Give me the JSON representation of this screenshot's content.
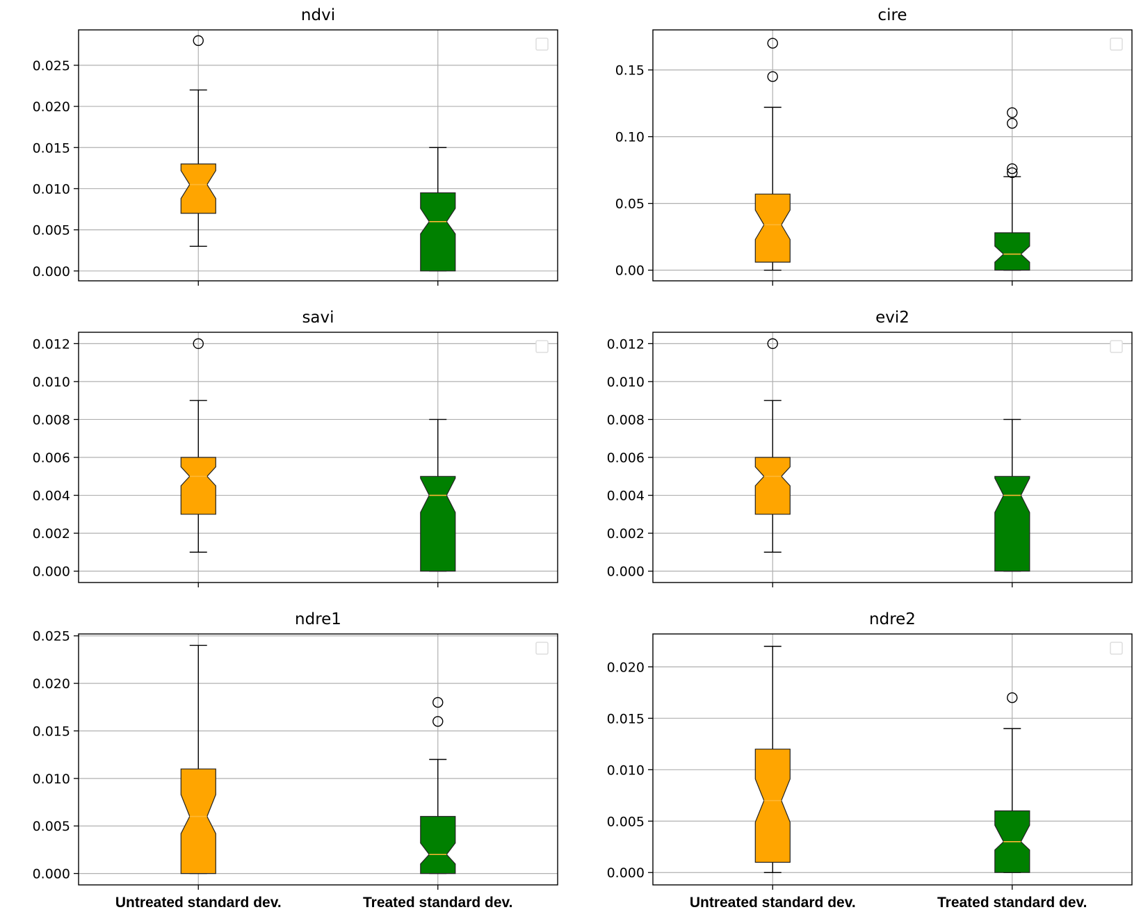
{
  "chart_data": [
    {
      "type": "box",
      "title": "ndvi",
      "categories": [
        "Untreated standard dev.",
        "Treated standard dev."
      ],
      "show_xticklabels": false,
      "ylim": [
        -0.0012,
        0.0293
      ],
      "yticks": [
        0.0,
        0.005,
        0.01,
        0.015,
        0.02,
        0.025
      ],
      "ytick_labels": [
        "0.000",
        "0.005",
        "0.010",
        "0.015",
        "0.020",
        "0.025"
      ],
      "grid": true,
      "notched": true,
      "boxes": [
        {
          "category": "Untreated standard dev.",
          "whisker_low": 0.003,
          "q1": 0.007,
          "median": 0.0105,
          "q3": 0.013,
          "whisker_high": 0.022,
          "notch_low": 0.0088,
          "notch_high": 0.0122,
          "outliers": [
            0.028
          ]
        },
        {
          "category": "Treated standard dev.",
          "whisker_low": 0.0,
          "q1": 0.0,
          "median": 0.006,
          "q3": 0.0095,
          "whisker_high": 0.015,
          "notch_low": 0.0045,
          "notch_high": 0.0076,
          "outliers": []
        }
      ]
    },
    {
      "type": "box",
      "title": "cire",
      "categories": [
        "Untreated standard dev.",
        "Treated standard dev."
      ],
      "show_xticklabels": false,
      "ylim": [
        -0.008,
        0.18
      ],
      "yticks": [
        0.0,
        0.05,
        0.1,
        0.15
      ],
      "ytick_labels": [
        "0.00",
        "0.05",
        "0.10",
        "0.15"
      ],
      "grid": true,
      "notched": true,
      "boxes": [
        {
          "category": "Untreated standard dev.",
          "whisker_low": 0.0,
          "q1": 0.006,
          "median": 0.034,
          "q3": 0.057,
          "whisker_high": 0.122,
          "notch_low": 0.023,
          "notch_high": 0.045,
          "outliers": [
            0.145,
            0.17
          ]
        },
        {
          "category": "Treated standard dev.",
          "whisker_low": 0.0,
          "q1": 0.0,
          "median": 0.012,
          "q3": 0.028,
          "whisker_high": 0.07,
          "notch_low": 0.006,
          "notch_high": 0.018,
          "outliers": [
            0.073,
            0.076,
            0.11,
            0.118
          ]
        }
      ]
    },
    {
      "type": "box",
      "title": "savi",
      "categories": [
        "Untreated standard dev.",
        "Treated standard dev."
      ],
      "show_xticklabels": false,
      "ylim": [
        -0.0006,
        0.0126
      ],
      "yticks": [
        0.0,
        0.002,
        0.004,
        0.006,
        0.008,
        0.01,
        0.012
      ],
      "ytick_labels": [
        "0.000",
        "0.002",
        "0.004",
        "0.006",
        "0.008",
        "0.010",
        "0.012"
      ],
      "grid": true,
      "notched": true,
      "boxes": [
        {
          "category": "Untreated standard dev.",
          "whisker_low": 0.001,
          "q1": 0.003,
          "median": 0.005,
          "q3": 0.006,
          "whisker_high": 0.009,
          "notch_low": 0.0045,
          "notch_high": 0.0055,
          "outliers": [
            0.012
          ]
        },
        {
          "category": "Treated standard dev.",
          "whisker_low": 0.0,
          "q1": 0.0,
          "median": 0.004,
          "q3": 0.005,
          "whisker_high": 0.008,
          "notch_low": 0.0031,
          "notch_high": 0.0049,
          "outliers": []
        }
      ]
    },
    {
      "type": "box",
      "title": "evi2",
      "categories": [
        "Untreated standard dev.",
        "Treated standard dev."
      ],
      "show_xticklabels": false,
      "ylim": [
        -0.0006,
        0.0126
      ],
      "yticks": [
        0.0,
        0.002,
        0.004,
        0.006,
        0.008,
        0.01,
        0.012
      ],
      "ytick_labels": [
        "0.000",
        "0.002",
        "0.004",
        "0.006",
        "0.008",
        "0.010",
        "0.012"
      ],
      "grid": true,
      "notched": true,
      "boxes": [
        {
          "category": "Untreated standard dev.",
          "whisker_low": 0.001,
          "q1": 0.003,
          "median": 0.005,
          "q3": 0.006,
          "whisker_high": 0.009,
          "notch_low": 0.0045,
          "notch_high": 0.0055,
          "outliers": [
            0.012
          ]
        },
        {
          "category": "Treated standard dev.",
          "whisker_low": 0.0,
          "q1": 0.0,
          "median": 0.004,
          "q3": 0.005,
          "whisker_high": 0.008,
          "notch_low": 0.0031,
          "notch_high": 0.0049,
          "outliers": []
        }
      ]
    },
    {
      "type": "box",
      "title": "ndre1",
      "categories": [
        "Untreated standard dev.",
        "Treated standard dev."
      ],
      "show_xticklabels": true,
      "ylim": [
        -0.0012,
        0.0252
      ],
      "yticks": [
        0.0,
        0.005,
        0.01,
        0.015,
        0.02,
        0.025
      ],
      "ytick_labels": [
        "0.000",
        "0.005",
        "0.010",
        "0.015",
        "0.020",
        "0.025"
      ],
      "grid": true,
      "notched": true,
      "boxes": [
        {
          "category": "Untreated standard dev.",
          "whisker_low": 0.0,
          "q1": 0.0,
          "median": 0.006,
          "q3": 0.011,
          "whisker_high": 0.024,
          "notch_low": 0.0042,
          "notch_high": 0.0083,
          "outliers": []
        },
        {
          "category": "Treated standard dev.",
          "whisker_low": 0.0,
          "q1": 0.0,
          "median": 0.002,
          "q3": 0.006,
          "whisker_high": 0.012,
          "notch_low": 0.001,
          "notch_high": 0.0032,
          "outliers": [
            0.016,
            0.018
          ]
        }
      ]
    },
    {
      "type": "box",
      "title": "ndre2",
      "categories": [
        "Untreated standard dev.",
        "Treated standard dev."
      ],
      "show_xticklabels": true,
      "ylim": [
        -0.0012,
        0.0232
      ],
      "yticks": [
        0.0,
        0.005,
        0.01,
        0.015,
        0.02
      ],
      "ytick_labels": [
        "0.000",
        "0.005",
        "0.010",
        "0.015",
        "0.020"
      ],
      "grid": true,
      "notched": true,
      "boxes": [
        {
          "category": "Untreated standard dev.",
          "whisker_low": 0.0,
          "q1": 0.001,
          "median": 0.007,
          "q3": 0.012,
          "whisker_high": 0.022,
          "notch_low": 0.0049,
          "notch_high": 0.0091,
          "outliers": []
        },
        {
          "category": "Treated standard dev.",
          "whisker_low": 0.0,
          "q1": 0.0,
          "median": 0.003,
          "q3": 0.006,
          "whisker_high": 0.014,
          "notch_low": 0.0022,
          "notch_high": 0.0046,
          "outliers": [
            0.017
          ]
        }
      ]
    }
  ],
  "colors": {
    "untreated_box": "#ffa500",
    "treated_box": "#008000",
    "median_line": "#ffb733",
    "grid": "#b0b0b0",
    "axes": "#000000",
    "legend_box": "#dddddd"
  }
}
